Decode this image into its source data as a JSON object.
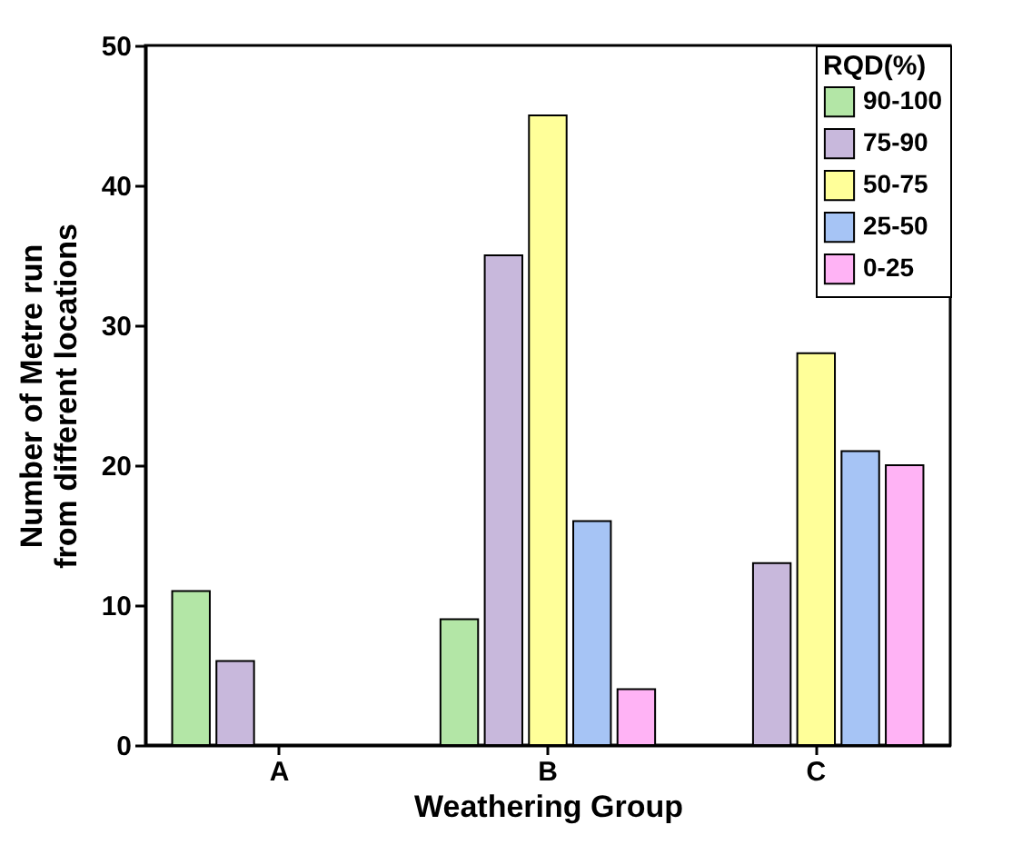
{
  "chart_data": {
    "type": "bar",
    "xlabel": "Weathering Group",
    "ylabel": "Number of Metre run\nfrom different locations",
    "legend_title": "RQD(%)",
    "categories": [
      "A",
      "B",
      "C"
    ],
    "series": [
      {
        "name": "90-100",
        "color": "#b3e6a6",
        "values": [
          11,
          9,
          null
        ]
      },
      {
        "name": "75-90",
        "color": "#c8b8dc",
        "values": [
          6,
          35,
          13
        ]
      },
      {
        "name": "50-75",
        "color": "#ffff99",
        "values": [
          null,
          45,
          28
        ]
      },
      {
        "name": "25-50",
        "color": "#a6c4f5",
        "values": [
          null,
          16,
          21
        ]
      },
      {
        "name": "0-25",
        "color": "#ffb3f5",
        "values": [
          null,
          4,
          20
        ]
      }
    ],
    "ylim": [
      0,
      50
    ],
    "yticks": [
      0,
      10,
      20,
      30,
      40,
      50
    ],
    "grid": false,
    "legend": "top right"
  }
}
